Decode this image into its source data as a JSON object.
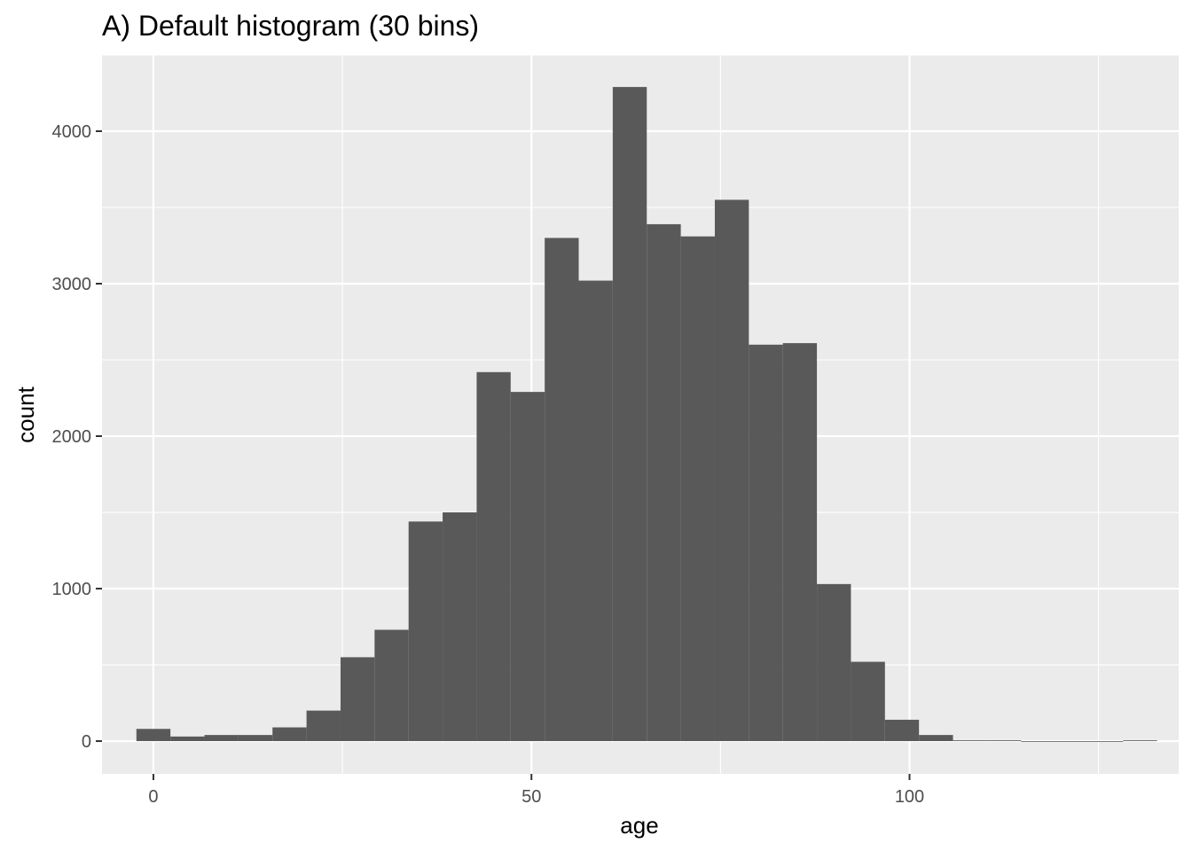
{
  "chart_data": {
    "type": "bar",
    "title": "A) Default histogram (30 bins)",
    "xlabel": "age",
    "ylabel": "count",
    "xlim": [
      -6.8,
      135.6
    ],
    "ylim": [
      -215,
      4500
    ],
    "x_ticks": [
      0,
      50,
      100
    ],
    "y_ticks": [
      0,
      1000,
      2000,
      3000,
      4000
    ],
    "grid": true,
    "legend": "none",
    "bar_color": "#595959",
    "panel_color": "#ebebeb",
    "bins": [
      {
        "x0": -2.25,
        "x1": 2.25,
        "count": 80
      },
      {
        "x0": 2.25,
        "x1": 6.75,
        "count": 30
      },
      {
        "x0": 6.75,
        "x1": 11.25,
        "count": 40
      },
      {
        "x0": 11.25,
        "x1": 15.75,
        "count": 40
      },
      {
        "x0": 15.75,
        "x1": 20.25,
        "count": 90
      },
      {
        "x0": 20.25,
        "x1": 24.75,
        "count": 200
      },
      {
        "x0": 24.75,
        "x1": 29.25,
        "count": 550
      },
      {
        "x0": 29.25,
        "x1": 33.75,
        "count": 730
      },
      {
        "x0": 33.75,
        "x1": 38.25,
        "count": 1440
      },
      {
        "x0": 38.25,
        "x1": 42.75,
        "count": 1500
      },
      {
        "x0": 42.75,
        "x1": 47.25,
        "count": 2420
      },
      {
        "x0": 47.25,
        "x1": 51.75,
        "count": 2290
      },
      {
        "x0": 51.75,
        "x1": 56.25,
        "count": 3300
      },
      {
        "x0": 56.25,
        "x1": 60.75,
        "count": 3020
      },
      {
        "x0": 60.75,
        "x1": 65.25,
        "count": 4290
      },
      {
        "x0": 65.25,
        "x1": 69.75,
        "count": 3390
      },
      {
        "x0": 69.75,
        "x1": 74.25,
        "count": 3310
      },
      {
        "x0": 74.25,
        "x1": 78.75,
        "count": 3550
      },
      {
        "x0": 78.75,
        "x1": 83.25,
        "count": 2600
      },
      {
        "x0": 83.25,
        "x1": 87.75,
        "count": 2610
      },
      {
        "x0": 87.75,
        "x1": 92.25,
        "count": 1030
      },
      {
        "x0": 92.25,
        "x1": 96.75,
        "count": 520
      },
      {
        "x0": 96.75,
        "x1": 101.25,
        "count": 140
      },
      {
        "x0": 101.25,
        "x1": 105.75,
        "count": 40
      },
      {
        "x0": 105.75,
        "x1": 110.25,
        "count": 5
      },
      {
        "x0": 110.25,
        "x1": 114.75,
        "count": 5
      },
      {
        "x0": 114.75,
        "x1": 119.25,
        "count": 0
      },
      {
        "x0": 119.25,
        "x1": 123.75,
        "count": 0
      },
      {
        "x0": 123.75,
        "x1": 128.25,
        "count": 0
      },
      {
        "x0": 128.25,
        "x1": 132.75,
        "count": 5
      }
    ]
  }
}
